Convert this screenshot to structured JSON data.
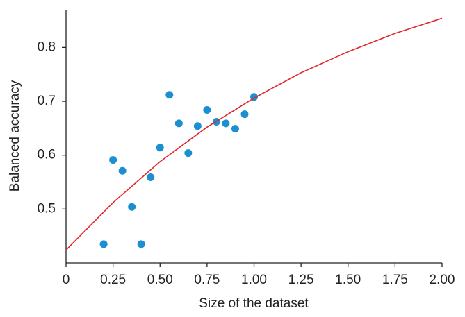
{
  "chart_data": {
    "type": "scatter",
    "x_label": "Size of the dataset",
    "y_label": "Balanced accuracy",
    "xlim": [
      0,
      2
    ],
    "ylim": [
      0.4,
      0.87
    ],
    "xticks": [
      0,
      0.25,
      {
        "value": 0.5,
        "label": "0.50"
      },
      0.75,
      {
        "value": 1,
        "label": "1.00"
      },
      1.25,
      {
        "value": 1.5,
        "label": "1.50"
      },
      1.75,
      {
        "value": 2,
        "label": "2.00"
      }
    ],
    "yticks": [
      0.5,
      0.6,
      0.7,
      0.8
    ],
    "series": [
      {
        "type": "scatter",
        "color": "#1b8fd2",
        "x": [
          0.2,
          0.25,
          0.3,
          0.35,
          0.4,
          0.45,
          0.5,
          0.55,
          0.6,
          0.65,
          0.7,
          0.75,
          0.8,
          0.85,
          0.9,
          0.95,
          1.0
        ],
        "values": [
          0.435,
          0.591,
          0.571,
          0.504,
          0.435,
          0.559,
          0.614,
          0.712,
          0.659,
          0.604,
          0.654,
          0.684,
          0.662,
          0.659,
          0.649,
          0.676,
          0.708
        ]
      },
      {
        "type": "line",
        "color": "#e0262b",
        "x": [
          0,
          0.25,
          0.5,
          0.75,
          1.0,
          1.25,
          1.5,
          1.75,
          2.0
        ],
        "values": [
          0.424,
          0.512,
          0.588,
          0.652,
          0.706,
          0.753,
          0.792,
          0.826,
          0.854
        ]
      }
    ]
  }
}
